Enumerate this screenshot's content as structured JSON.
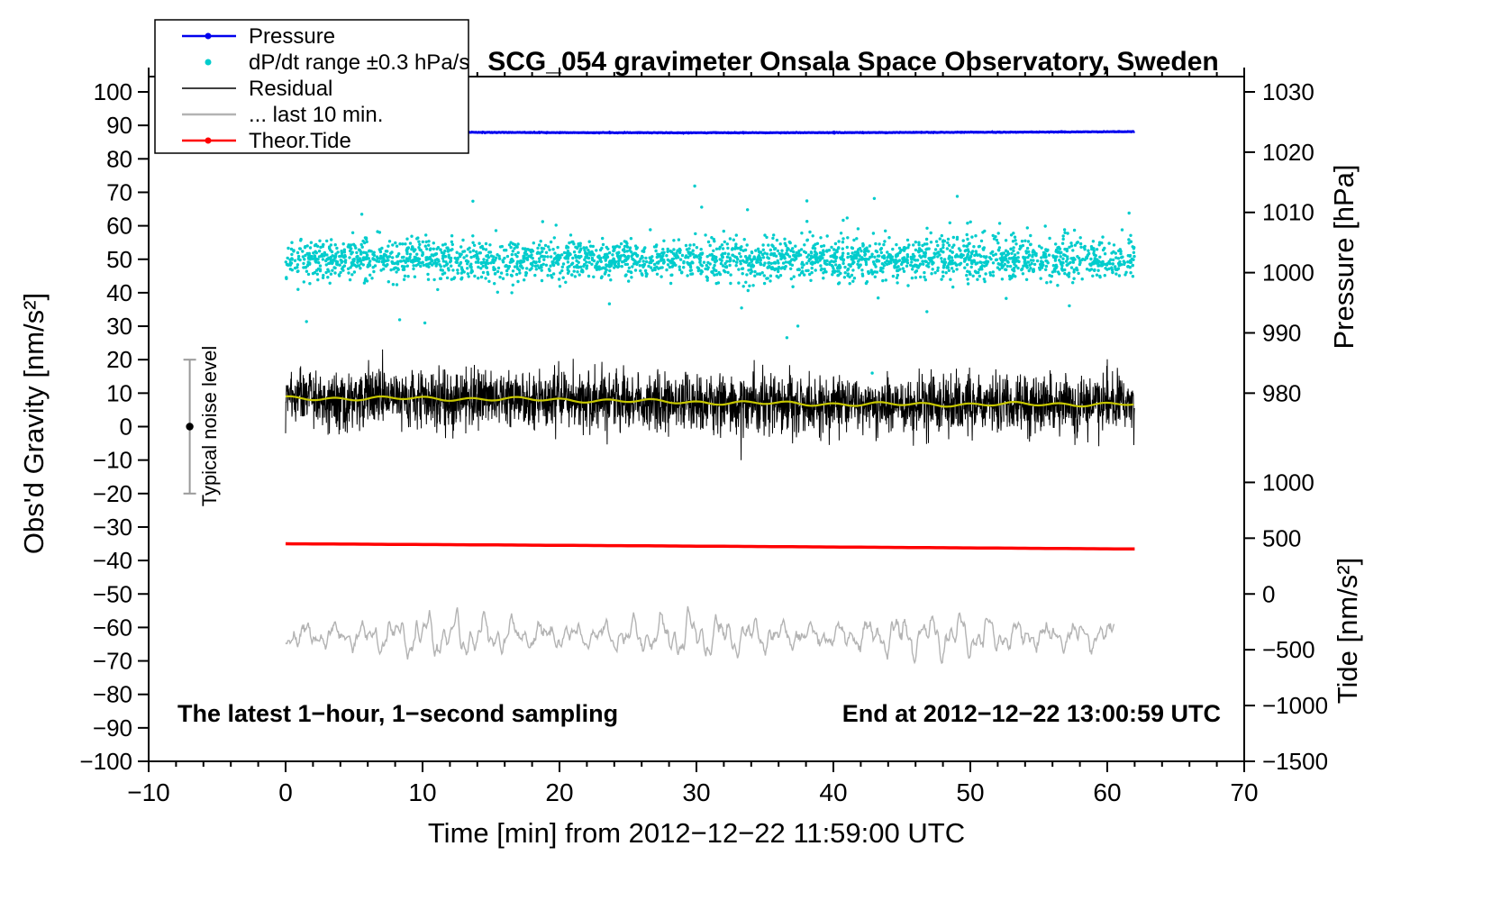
{
  "chart_data": {
    "type": "line",
    "title": "SCG_054 gravimeter Onsala Space Observatory, Sweden",
    "xlabel": "Time [min] from 2012−12−22 11:59:00 UTC",
    "ylabel_left": "Obs'd Gravity [nm/s²]",
    "ylabel_pressure": "Pressure [hPa]",
    "ylabel_tide": "Tide [nm/s²]",
    "x_axis": {
      "min": -10,
      "max": 70,
      "tick_step": 10,
      "minor_step": 2
    },
    "left_axis": {
      "min": -100,
      "max": 100,
      "tick_step": 10
    },
    "pressure_axis": {
      "ticks": [
        1030,
        1020,
        1010,
        1000,
        990,
        980
      ]
    },
    "tide_axis": {
      "ticks": [
        1000,
        500,
        0,
        -500,
        -1000,
        -1500
      ]
    },
    "annotations": {
      "bottom_left": "The latest 1−hour, 1−second sampling",
      "bottom_right": "End at 2012−12−22 13:00:59 UTC"
    },
    "noise_bar": {
      "x": -7,
      "center": 0,
      "halfwidth": 20,
      "label": "Typical noise level"
    },
    "legend": [
      {
        "label": "Pressure",
        "color": "#0000ee",
        "marker": "line-dot"
      },
      {
        "label": "dP/dt range ±0.3 hPa/s",
        "color": "#00cccc",
        "marker": "dot"
      },
      {
        "label": "Residual",
        "color": "#000000",
        "marker": "line"
      },
      {
        "label": "... last 10 min.",
        "color": "#b3b3b3",
        "marker": "line"
      },
      {
        "label": "Theor.Tide",
        "color": "#ff0000",
        "marker": "line-dot"
      }
    ],
    "series": [
      {
        "id": "pressure",
        "label": "Pressure",
        "type": "line",
        "axis": "pressure",
        "color": "#0000ee",
        "mean_hPa": 1023.4,
        "variation_hPa": 0.2,
        "x_start": 0,
        "x_end": 62
      },
      {
        "id": "dpdt",
        "label": "dP/dt range ±0.3 hPa/s",
        "type": "scatter",
        "axis": "gravity",
        "color": "#00cccc",
        "center": 50,
        "spread": 2.9,
        "outlier_spread": 9,
        "outlier_fraction": 0.05,
        "points": 2600,
        "x_start": 0,
        "x_end": 62,
        "value_range": [
          20,
          82
        ]
      },
      {
        "id": "residual",
        "label": "Residual",
        "type": "line",
        "axis": "gravity",
        "color": "#000000",
        "start_level": 8.4,
        "end_level": 6.4,
        "noise_sigma": 4.3,
        "x_start": 0,
        "x_end": 62
      },
      {
        "id": "residual_smoothed",
        "label": "Residual smoothed",
        "type": "line",
        "axis": "gravity",
        "color": "#c8c800",
        "start_level": 8.4,
        "end_level": 6.4,
        "x_start": 0,
        "x_end": 62
      },
      {
        "id": "last10",
        "label": "... last 10 min.",
        "type": "line",
        "axis": "gravity",
        "color": "#b3b3b3",
        "center": -62.5,
        "amplitude": 4.5,
        "x_start": 0,
        "x_end": 60.5
      },
      {
        "id": "tide",
        "label": "Theor.Tide",
        "type": "line",
        "axis": "tide",
        "color": "#ff0000",
        "start_value": 450,
        "end_value": 403,
        "x_start": 0,
        "x_end": 62
      }
    ]
  }
}
